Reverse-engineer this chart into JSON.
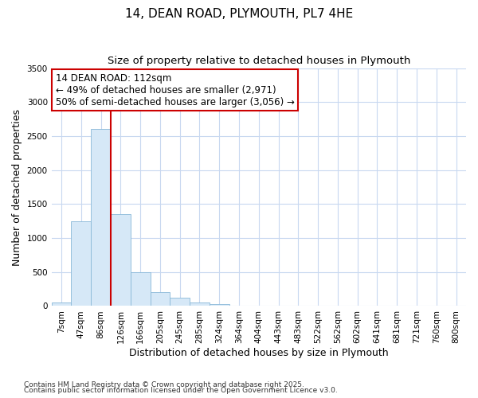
{
  "title_line1": "14, DEAN ROAD, PLYMOUTH, PL7 4HE",
  "title_line2": "Size of property relative to detached houses in Plymouth",
  "xlabel": "Distribution of detached houses by size in Plymouth",
  "ylabel": "Number of detached properties",
  "categories": [
    "7sqm",
    "47sqm",
    "86sqm",
    "126sqm",
    "166sqm",
    "205sqm",
    "245sqm",
    "285sqm",
    "324sqm",
    "364sqm",
    "404sqm",
    "443sqm",
    "483sqm",
    "522sqm",
    "562sqm",
    "602sqm",
    "641sqm",
    "681sqm",
    "721sqm",
    "760sqm",
    "800sqm"
  ],
  "values": [
    50,
    1250,
    2600,
    1350,
    500,
    200,
    120,
    55,
    25,
    10,
    5,
    2,
    1,
    0,
    0,
    0,
    0,
    0,
    0,
    0,
    0
  ],
  "bar_color": "#d6e8f7",
  "bar_edge_color": "#89b8d8",
  "vline_color": "#cc0000",
  "vline_pos": 2.5,
  "annotation_text": "14 DEAN ROAD: 112sqm\n← 49% of detached houses are smaller (2,971)\n50% of semi-detached houses are larger (3,056) →",
  "annotation_box_color": "#ffffff",
  "annotation_box_edge": "#cc0000",
  "ylim": [
    0,
    3500
  ],
  "yticks": [
    0,
    500,
    1000,
    1500,
    2000,
    2500,
    3000,
    3500
  ],
  "footnote1": "Contains HM Land Registry data © Crown copyright and database right 2025.",
  "footnote2": "Contains public sector information licensed under the Open Government Licence v3.0.",
  "bg_color": "#ffffff",
  "plot_bg_color": "#ffffff",
  "grid_color": "#c8d8f0",
  "title_fontsize": 11,
  "subtitle_fontsize": 9.5,
  "axis_label_fontsize": 9,
  "tick_fontsize": 7.5,
  "annotation_fontsize": 8.5
}
